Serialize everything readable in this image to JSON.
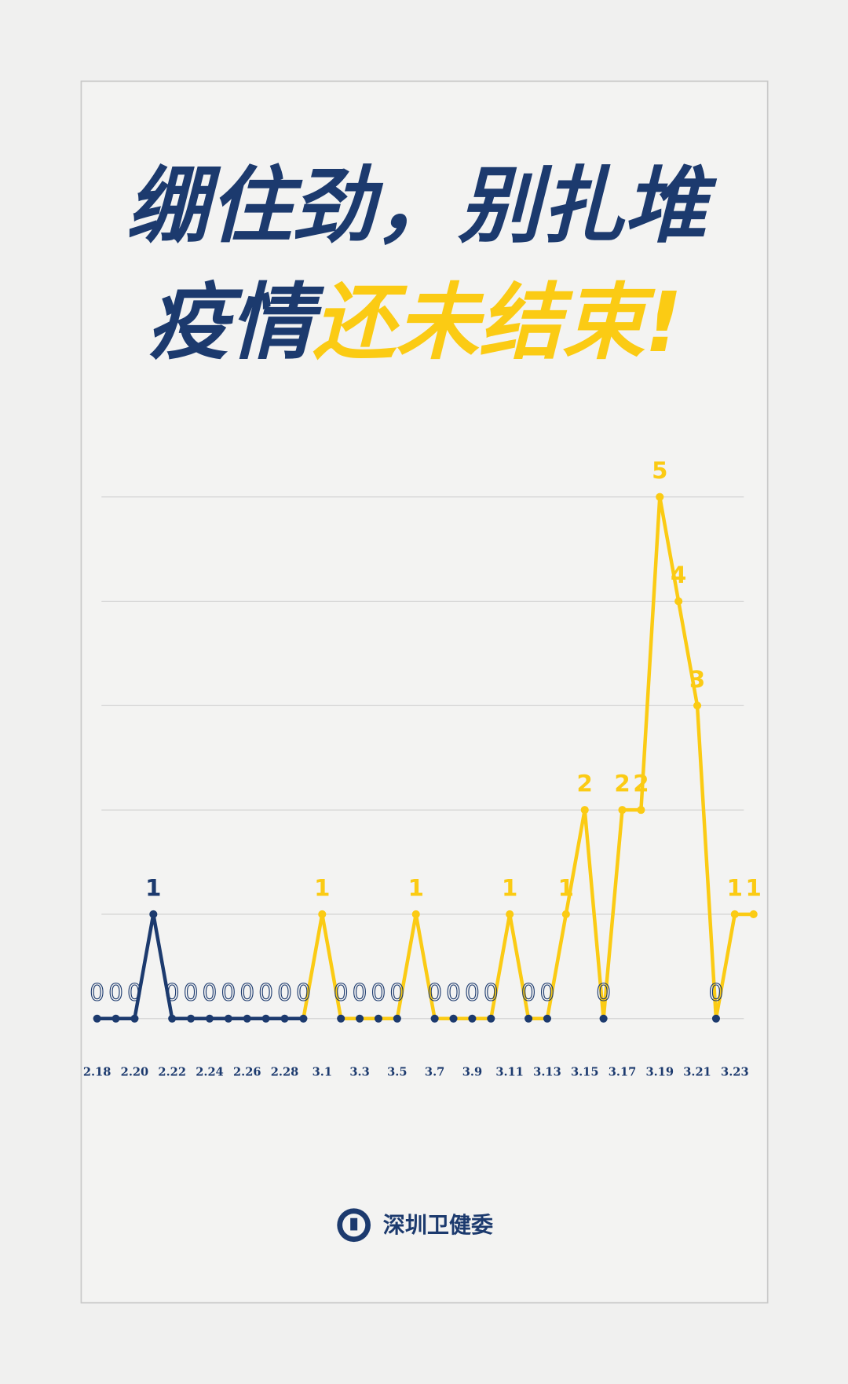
{
  "chart_data": {
    "type": "line",
    "title_line1": "绷住劲，别扎堆",
    "title_line2_part1": "疫情",
    "title_line2_part2": "还未结束!",
    "source": "深圳卫健委",
    "categories": [
      "2.18",
      null,
      "2.20",
      null,
      "2.22",
      null,
      "2.24",
      null,
      "2.26",
      null,
      "2.28",
      null,
      "3.1",
      null,
      "3.3",
      null,
      "3.5",
      null,
      "3.7",
      null,
      "3.9",
      null,
      "3.11",
      null,
      "3.13",
      null,
      "3.15",
      null,
      "3.17",
      null,
      "3.19",
      null,
      "3.21",
      null,
      "3.23",
      null
    ],
    "series": [
      {
        "color": "#1c3a6e",
        "values": [
          0,
          0,
          0,
          1,
          0,
          0,
          0,
          0,
          0,
          0,
          0,
          0,
          null,
          null,
          null,
          null,
          null,
          null,
          null,
          null,
          null,
          null,
          null,
          null,
          null,
          null,
          null,
          null,
          null,
          null,
          null,
          null,
          null,
          null,
          null,
          null
        ]
      },
      {
        "color": "#fbcb14",
        "values": [
          null,
          null,
          null,
          null,
          null,
          null,
          null,
          null,
          null,
          null,
          null,
          null,
          1,
          0,
          0,
          0,
          0,
          1,
          0,
          0,
          0,
          0,
          1,
          0,
          0,
          1,
          2,
          0,
          2,
          2,
          5,
          4,
          3,
          0,
          1,
          1
        ]
      }
    ],
    "zero_marker_color": "#1c3a6e",
    "ylim": [
      0,
      5
    ],
    "yticks": [
      0,
      1,
      2,
      3,
      4,
      5
    ],
    "grid": true
  }
}
